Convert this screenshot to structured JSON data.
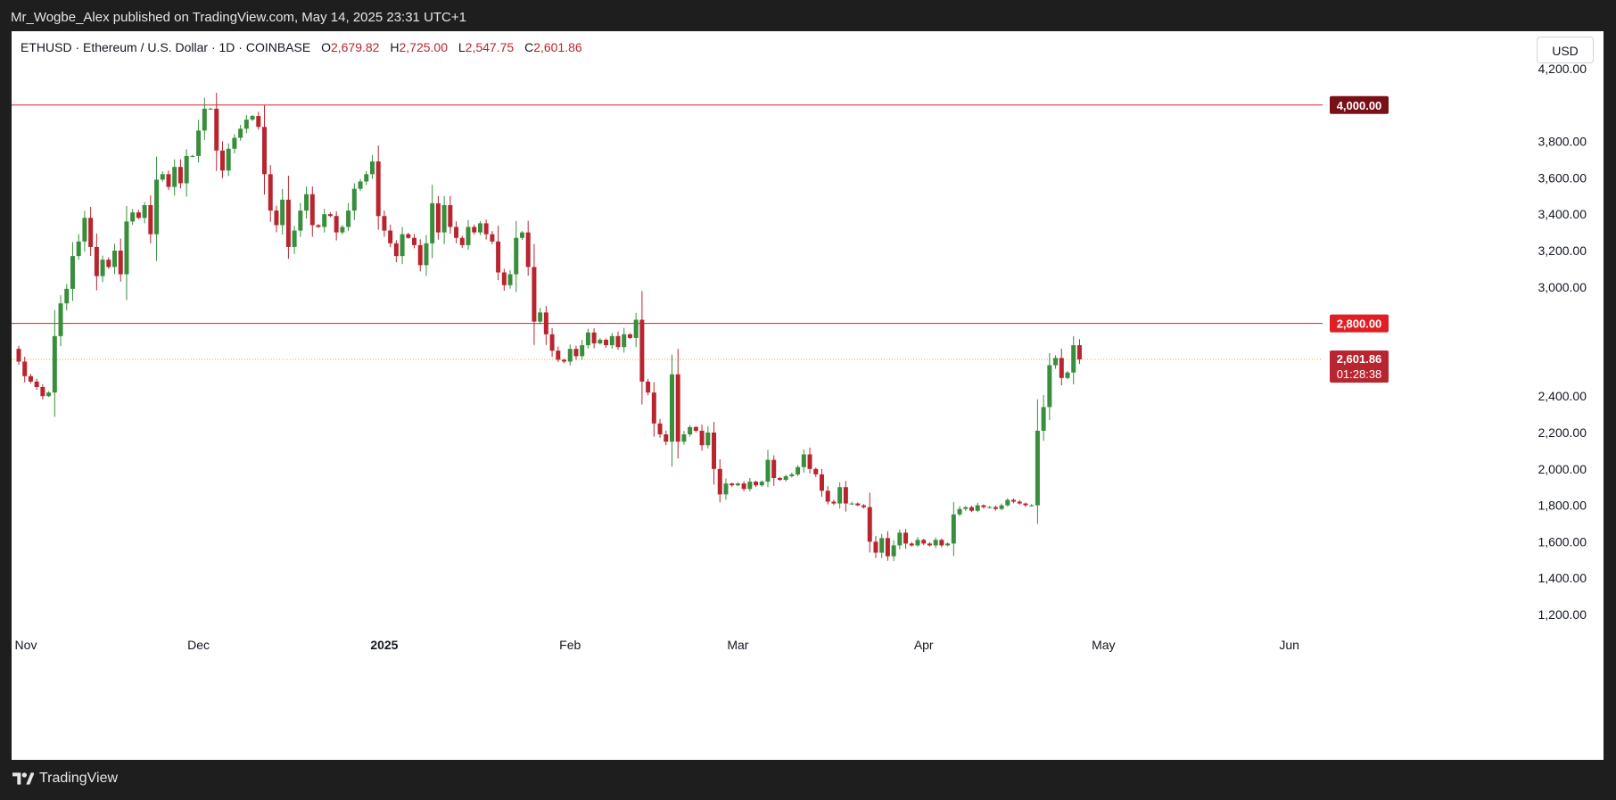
{
  "header": {
    "published_text": "Mr_Wogbe_Alex published on TradingView.com, May 14, 2025 23:31 UTC+1"
  },
  "legend": {
    "symbol_text": "ETHUSD · Ethereum / U.S. Dollar · 1D · COINBASE",
    "open_key": "O",
    "open_val": "2,679.82",
    "high_key": "H",
    "high_val": "2,725.00",
    "low_key": "L",
    "low_val": "2,547.75",
    "close_key": "C",
    "close_val": "2,601.86"
  },
  "currency_button": "USD",
  "footer": {
    "brand": "TradingView"
  },
  "colors": {
    "up": "#388e3c",
    "down": "#b8252f",
    "line": "#d8202f",
    "label_4000_bg": "#7a1017",
    "label_2800_bg": "#e01f25",
    "price_label_bg": "#b8252f",
    "current_price_line": "#f5a623"
  },
  "chart_data": {
    "type": "candlestick",
    "title": "",
    "ylim": [
      1100,
      4350
    ],
    "yticks": [
      1200,
      1400,
      1600,
      1800,
      2000,
      2200,
      2400,
      2600,
      2800,
      3000,
      3200,
      3400,
      3600,
      3800,
      4000,
      4200
    ],
    "ytick_labels": [
      "1,200.00",
      "1,400.00",
      "1,600.00",
      "1,800.00",
      "2,000.00",
      "2,200.00",
      "2,400.00",
      "",
      "",
      "3,000.00",
      "3,200.00",
      "3,400.00",
      "3,600.00",
      "3,800.00",
      "",
      "4,200.00"
    ],
    "x_labels": [
      {
        "label": "Nov",
        "day": 0
      },
      {
        "label": "Dec",
        "day": 30
      },
      {
        "label": "2025",
        "day": 61
      },
      {
        "label": "Feb",
        "day": 92
      },
      {
        "label": "Mar",
        "day": 120
      },
      {
        "label": "Apr",
        "day": 151
      },
      {
        "label": "May",
        "day": 181
      },
      {
        "label": "Jun",
        "day": 212
      }
    ],
    "horizontal_lines": [
      {
        "value": 4000,
        "label": "4,000.00"
      },
      {
        "value": 2800,
        "label": "2,800.00"
      }
    ],
    "current_price": {
      "value": 2601.86,
      "label": "2,601.86",
      "countdown": "01:28:38"
    },
    "closes": [
      2590,
      2510,
      2480,
      2450,
      2400,
      2420,
      2730,
      2910,
      2990,
      3170,
      3250,
      3380,
      3220,
      3060,
      3150,
      3110,
      3200,
      3070,
      3360,
      3410,
      3380,
      3450,
      3290,
      3590,
      3620,
      3550,
      3660,
      3570,
      3720,
      3720,
      3860,
      3980,
      3980,
      3750,
      3640,
      3760,
      3820,
      3870,
      3920,
      3940,
      3880,
      3620,
      3420,
      3340,
      3480,
      3220,
      3310,
      3420,
      3510,
      3340,
      3330,
      3400,
      3390,
      3300,
      3330,
      3420,
      3540,
      3580,
      3620,
      3690,
      3390,
      3310,
      3240,
      3170,
      3290,
      3270,
      3230,
      3120,
      3240,
      3460,
      3300,
      3450,
      3330,
      3270,
      3230,
      3330,
      3300,
      3350,
      3290,
      3250,
      3080,
      3010,
      3070,
      3270,
      3300,
      3110,
      2810,
      2860,
      2740,
      2650,
      2600,
      2590,
      2660,
      2620,
      2680,
      2750,
      2690,
      2710,
      2680,
      2730,
      2670,
      2740,
      2720,
      2820,
      2480,
      2420,
      2250,
      2190,
      2150,
      2520,
      2150,
      2190,
      2230,
      2210,
      2130,
      2200,
      2000,
      1860,
      1920,
      1910,
      1920,
      1890,
      1930,
      1910,
      1930,
      2050,
      1950,
      1940,
      1960,
      1970,
      2010,
      2080,
      2000,
      1970,
      1880,
      1820,
      1810,
      1900,
      1810,
      1810,
      1800,
      1790,
      1600,
      1540,
      1620,
      1520,
      1580,
      1650,
      1590,
      1580,
      1610,
      1590,
      1580,
      1610,
      1580,
      1590,
      1750,
      1780,
      1790,
      1770,
      1800,
      1790,
      1790,
      1780,
      1800,
      1830,
      1820,
      1810,
      1800,
      1800,
      2210,
      2340,
      2570,
      2610,
      2500,
      2530,
      2680,
      2602
    ],
    "note": "Daily candles starting Oct 31, 2024 (open = previous close)."
  }
}
